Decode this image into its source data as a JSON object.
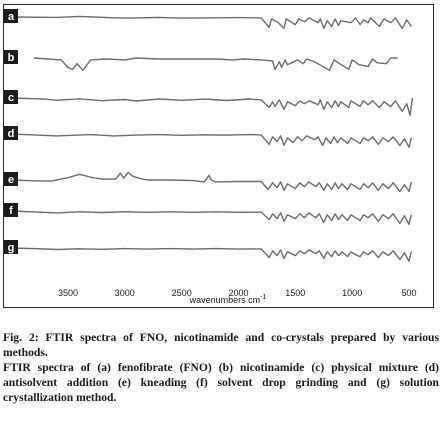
{
  "chart_data": {
    "type": "line",
    "x_unit_label": "wavenumbers cm",
    "x_unit_superscript": "-1",
    "x_reversed": true,
    "xlim": [
      4000,
      450
    ],
    "x_ticks": [
      3500,
      3000,
      2500,
      2000,
      1500,
      1000,
      500
    ],
    "x_tick_labels": [
      "3500",
      "3000",
      "2500",
      "2000",
      "1500",
      "1000",
      "500"
    ],
    "series": [
      {
        "name": "a",
        "points": [
          [
            4000,
            0
          ],
          [
            3600,
            -0.2
          ],
          [
            3400,
            0.3
          ],
          [
            3100,
            -0.4
          ],
          [
            2950,
            -0.6
          ],
          [
            2700,
            -0.2
          ],
          [
            2500,
            -0.6
          ],
          [
            2300,
            -0.5
          ],
          [
            2000,
            -0.3
          ],
          [
            1800,
            -0.5
          ],
          [
            1730,
            -5.5
          ],
          [
            1710,
            -1
          ],
          [
            1650,
            -3
          ],
          [
            1600,
            -6
          ],
          [
            1580,
            -1
          ],
          [
            1500,
            -4
          ],
          [
            1470,
            -1
          ],
          [
            1420,
            -2.5
          ],
          [
            1380,
            -0.5
          ],
          [
            1300,
            -3
          ],
          [
            1280,
            -1
          ],
          [
            1250,
            -6
          ],
          [
            1220,
            -2
          ],
          [
            1180,
            -5
          ],
          [
            1150,
            -1
          ],
          [
            1120,
            -4.5
          ],
          [
            1100,
            -2
          ],
          [
            1010,
            -3
          ],
          [
            970,
            -0.5
          ],
          [
            930,
            -4
          ],
          [
            900,
            -1.5
          ],
          [
            860,
            -3
          ],
          [
            840,
            -0.5
          ],
          [
            760,
            -5
          ],
          [
            720,
            -1
          ],
          [
            660,
            -3
          ],
          [
            620,
            -0.5
          ],
          [
            560,
            -6
          ],
          [
            520,
            -1.5
          ],
          [
            480,
            -5
          ]
        ]
      },
      {
        "name": "b",
        "points": [
          [
            3800,
            0
          ],
          [
            3560,
            -1
          ],
          [
            3500,
            -5
          ],
          [
            3460,
            -6
          ],
          [
            3420,
            -3
          ],
          [
            3370,
            -6.5
          ],
          [
            3300,
            -1
          ],
          [
            3160,
            -0.5
          ],
          [
            3000,
            -1
          ],
          [
            2900,
            0
          ],
          [
            2700,
            -0.5
          ],
          [
            2400,
            -0.5
          ],
          [
            2200,
            -0.5
          ],
          [
            2050,
            -1
          ],
          [
            1950,
            -0.5
          ],
          [
            1800,
            -1
          ],
          [
            1700,
            -1.5
          ],
          [
            1680,
            -6
          ],
          [
            1640,
            -2
          ],
          [
            1620,
            -5
          ],
          [
            1590,
            -1
          ],
          [
            1570,
            -3.5
          ],
          [
            1480,
            -1
          ],
          [
            1430,
            -3
          ],
          [
            1400,
            -0.5
          ],
          [
            1330,
            -2
          ],
          [
            1200,
            -6.5
          ],
          [
            1160,
            -1
          ],
          [
            1110,
            -3
          ],
          [
            1030,
            -6
          ],
          [
            1000,
            -1
          ],
          [
            940,
            -3.5
          ],
          [
            860,
            -4.5
          ],
          [
            820,
            -0.5
          ],
          [
            780,
            -2.5
          ],
          [
            700,
            -3
          ],
          [
            660,
            0
          ],
          [
            600,
            0
          ]
        ]
      },
      {
        "name": "c",
        "points": [
          [
            4000,
            0
          ],
          [
            3700,
            -0.6
          ],
          [
            3600,
            -1.2
          ],
          [
            3400,
            -0.4
          ],
          [
            3200,
            -1.4
          ],
          [
            3000,
            -0.8
          ],
          [
            2900,
            -1.6
          ],
          [
            2700,
            -0.5
          ],
          [
            2500,
            -1.2
          ],
          [
            2300,
            -0.6
          ],
          [
            2100,
            -1.3
          ],
          [
            1900,
            -0.5
          ],
          [
            1800,
            -1
          ],
          [
            1730,
            -5
          ],
          [
            1700,
            -2
          ],
          [
            1680,
            -4.5
          ],
          [
            1640,
            -1
          ],
          [
            1600,
            -6
          ],
          [
            1570,
            -2
          ],
          [
            1500,
            -4
          ],
          [
            1460,
            -1.5
          ],
          [
            1420,
            -3
          ],
          [
            1380,
            -1.5
          ],
          [
            1300,
            -3.5
          ],
          [
            1280,
            -1
          ],
          [
            1250,
            -6
          ],
          [
            1220,
            -2
          ],
          [
            1180,
            -5
          ],
          [
            1150,
            -1.5
          ],
          [
            1120,
            -4.5
          ],
          [
            1100,
            -2
          ],
          [
            1030,
            -5
          ],
          [
            1010,
            -1.5
          ],
          [
            970,
            -3
          ],
          [
            930,
            -4.5
          ],
          [
            900,
            -1.5
          ],
          [
            860,
            -3.5
          ],
          [
            820,
            -1.5
          ],
          [
            760,
            -5
          ],
          [
            720,
            -2
          ],
          [
            660,
            -4.5
          ],
          [
            620,
            -1.5
          ],
          [
            560,
            -7
          ],
          [
            520,
            -3
          ],
          [
            490,
            -9
          ],
          [
            470,
            0
          ]
        ]
      },
      {
        "name": "d",
        "points": [
          [
            4000,
            0
          ],
          [
            3800,
            -0.5
          ],
          [
            3600,
            -1
          ],
          [
            3300,
            -0.3
          ],
          [
            3100,
            -1
          ],
          [
            2900,
            -0.6
          ],
          [
            2700,
            -0.3
          ],
          [
            2500,
            -0.7
          ],
          [
            2300,
            -0.4
          ],
          [
            2100,
            -0.6
          ],
          [
            1900,
            -0.3
          ],
          [
            1800,
            -0.5
          ],
          [
            1730,
            -5.5
          ],
          [
            1700,
            -1.5
          ],
          [
            1660,
            -4
          ],
          [
            1630,
            -1
          ],
          [
            1600,
            -6
          ],
          [
            1570,
            -2
          ],
          [
            1520,
            -4.5
          ],
          [
            1480,
            -1.5
          ],
          [
            1440,
            -3.5
          ],
          [
            1400,
            -1
          ],
          [
            1330,
            -3
          ],
          [
            1300,
            -1.5
          ],
          [
            1260,
            -6
          ],
          [
            1230,
            -2
          ],
          [
            1190,
            -5
          ],
          [
            1160,
            -1.5
          ],
          [
            1130,
            -4.5
          ],
          [
            1100,
            -2
          ],
          [
            1040,
            -5
          ],
          [
            1010,
            -2
          ],
          [
            970,
            -3.5
          ],
          [
            930,
            -5
          ],
          [
            900,
            -2
          ],
          [
            860,
            -3.5
          ],
          [
            820,
            -1.5
          ],
          [
            770,
            -5.5
          ],
          [
            730,
            -2
          ],
          [
            680,
            -4
          ],
          [
            640,
            -1.5
          ],
          [
            580,
            -6
          ],
          [
            540,
            -2.5
          ],
          [
            500,
            -7
          ],
          [
            480,
            -2
          ]
        ]
      },
      {
        "name": "e",
        "points": [
          [
            4000,
            0
          ],
          [
            3800,
            -0.4
          ],
          [
            3650,
            -0.6
          ],
          [
            3500,
            1.2
          ],
          [
            3400,
            3
          ],
          [
            3300,
            1.5
          ],
          [
            3200,
            0.5
          ],
          [
            3080,
            0.5
          ],
          [
            3040,
            3.5
          ],
          [
            3010,
            1
          ],
          [
            2970,
            4
          ],
          [
            2930,
            2
          ],
          [
            2880,
            1
          ],
          [
            2800,
            0
          ],
          [
            2600,
            0
          ],
          [
            2400,
            -0.3
          ],
          [
            2300,
            -1
          ],
          [
            2260,
            2.5
          ],
          [
            2240,
            0
          ],
          [
            2200,
            -1
          ],
          [
            2000,
            -0.8
          ],
          [
            1800,
            -0.8
          ],
          [
            1740,
            -5
          ],
          [
            1700,
            -1.5
          ],
          [
            1660,
            -4
          ],
          [
            1630,
            -1
          ],
          [
            1600,
            -5.5
          ],
          [
            1570,
            -2
          ],
          [
            1500,
            -4.5
          ],
          [
            1460,
            -1.5
          ],
          [
            1420,
            -3.5
          ],
          [
            1380,
            -1
          ],
          [
            1320,
            -3.5
          ],
          [
            1290,
            -1.5
          ],
          [
            1250,
            -5.5
          ],
          [
            1220,
            -2
          ],
          [
            1180,
            -5
          ],
          [
            1150,
            -1.5
          ],
          [
            1120,
            -4.5
          ],
          [
            1090,
            -2
          ],
          [
            1040,
            -5
          ],
          [
            1010,
            -2
          ],
          [
            970,
            -3.5
          ],
          [
            930,
            -5
          ],
          [
            900,
            -2
          ],
          [
            860,
            -4
          ],
          [
            820,
            -1.5
          ],
          [
            770,
            -5.5
          ],
          [
            730,
            -2
          ],
          [
            680,
            -4.5
          ],
          [
            640,
            -1.5
          ],
          [
            580,
            -6
          ],
          [
            540,
            -2.5
          ],
          [
            500,
            -6
          ],
          [
            480,
            -1
          ]
        ]
      },
      {
        "name": "f",
        "points": [
          [
            4000,
            0
          ],
          [
            3800,
            -0.5
          ],
          [
            3600,
            -1
          ],
          [
            3400,
            -0.4
          ],
          [
            3200,
            -0.8
          ],
          [
            3000,
            -0.4
          ],
          [
            2800,
            -0.7
          ],
          [
            2600,
            -0.4
          ],
          [
            2400,
            -0.7
          ],
          [
            2200,
            -0.4
          ],
          [
            2000,
            -0.7
          ],
          [
            1800,
            -0.6
          ],
          [
            1730,
            -4.5
          ],
          [
            1700,
            -1.5
          ],
          [
            1660,
            -4
          ],
          [
            1630,
            -1
          ],
          [
            1600,
            -5.5
          ],
          [
            1570,
            -2
          ],
          [
            1500,
            -4
          ],
          [
            1460,
            -1.5
          ],
          [
            1420,
            -3.5
          ],
          [
            1380,
            -1
          ],
          [
            1320,
            -3.5
          ],
          [
            1290,
            -1.5
          ],
          [
            1250,
            -6
          ],
          [
            1220,
            -2
          ],
          [
            1180,
            -5
          ],
          [
            1150,
            -1.5
          ],
          [
            1120,
            -4.5
          ],
          [
            1090,
            -2
          ],
          [
            1040,
            -5
          ],
          [
            1010,
            -2
          ],
          [
            970,
            -3.5
          ],
          [
            930,
            -5
          ],
          [
            900,
            -2
          ],
          [
            860,
            -3.5
          ],
          [
            820,
            -1.5
          ],
          [
            770,
            -5.5
          ],
          [
            730,
            -2
          ],
          [
            680,
            -4
          ],
          [
            640,
            -1.5
          ],
          [
            580,
            -6.5
          ],
          [
            540,
            -2.5
          ],
          [
            500,
            -7
          ],
          [
            480,
            -2
          ]
        ]
      },
      {
        "name": "g",
        "points": [
          [
            4000,
            0
          ],
          [
            3800,
            -0.3
          ],
          [
            3600,
            -0.8
          ],
          [
            3400,
            -0.4
          ],
          [
            3200,
            -0.7
          ],
          [
            3000,
            -0.3
          ],
          [
            2800,
            -0.6
          ],
          [
            2600,
            -0.3
          ],
          [
            2400,
            -0.6
          ],
          [
            2200,
            -0.3
          ],
          [
            2000,
            -0.6
          ],
          [
            1800,
            -0.5
          ],
          [
            1730,
            -5
          ],
          [
            1700,
            -1.5
          ],
          [
            1660,
            -4
          ],
          [
            1630,
            -1
          ],
          [
            1600,
            -5.5
          ],
          [
            1570,
            -2
          ],
          [
            1500,
            -4
          ],
          [
            1460,
            -1.5
          ],
          [
            1420,
            -3
          ],
          [
            1380,
            -1
          ],
          [
            1320,
            -3
          ],
          [
            1290,
            -1.5
          ],
          [
            1250,
            -5.5
          ],
          [
            1220,
            -2
          ],
          [
            1180,
            -4.5
          ],
          [
            1150,
            -1.5
          ],
          [
            1120,
            -4
          ],
          [
            1090,
            -2
          ],
          [
            1040,
            -4.5
          ],
          [
            1010,
            -2
          ],
          [
            970,
            -3.5
          ],
          [
            930,
            -4.5
          ],
          [
            900,
            -2
          ],
          [
            860,
            -3.5
          ],
          [
            820,
            -1.5
          ],
          [
            770,
            -5
          ],
          [
            730,
            -2
          ],
          [
            680,
            -4
          ],
          [
            640,
            -1.5
          ],
          [
            580,
            -6
          ],
          [
            540,
            -2.5
          ],
          [
            500,
            -7
          ],
          [
            480,
            -2
          ]
        ]
      }
    ]
  },
  "caption": {
    "title": "Fig. 2: FTIR spectra of FNO, nicotinamide and co-crystals prepared by various methods.",
    "body": "FTIR spectra of (a) fenofibrate (FNO) (b) nicotinamide (c) physical mixture (d) antisolvent addition (e) kneading (f) solvent drop grinding and (g) solution crystallization method."
  },
  "colors": {
    "trace": "#6b6b6b",
    "label_box": "#1c1c1c",
    "frame": "#2b2b2b"
  }
}
